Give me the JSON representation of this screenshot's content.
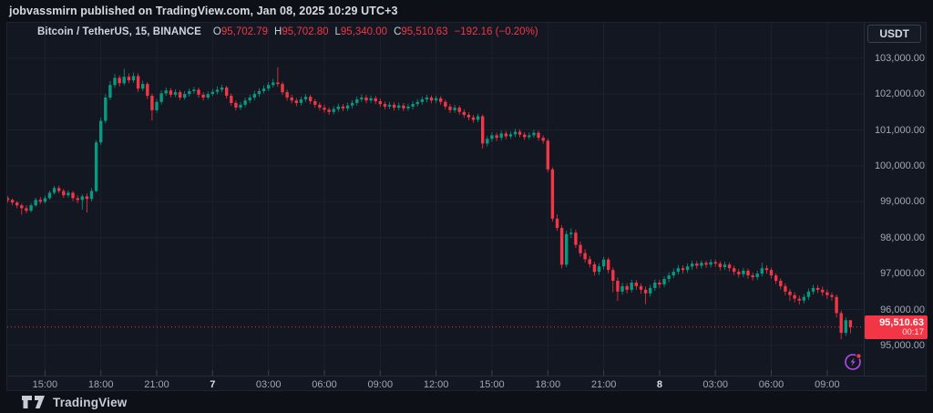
{
  "attribution": {
    "text": "jobvassmirn published on TradingView.com, Jan 08, 2025 10:29 UTC+3"
  },
  "toolbar": {
    "currency_button_label": "USDT"
  },
  "legend": {
    "symbol": "Bitcoin / TetherUS, 15, BINANCE",
    "o_label": "O",
    "o_value": "95,702.79",
    "h_label": "H",
    "h_value": "95,702.80",
    "l_label": "L",
    "l_value": "95,340.00",
    "c_label": "C",
    "c_value": "95,510.63",
    "change": "−192.16 (−0.20%)"
  },
  "price_badge": {
    "price": "95,510.63",
    "countdown": "00:17"
  },
  "footer": {
    "brand": "TradingView"
  },
  "colors": {
    "up": "#089981",
    "down": "#f23645",
    "chart_bg": "#131722",
    "page_bg": "#0e1018",
    "grid": "#1d212d",
    "tick_stub": "#3a3f4c",
    "axis_text": "#a3a7b1",
    "badge_bg": "#f23645",
    "flash_purple": "#b44cf0"
  },
  "chart_data": {
    "type": "candlestick",
    "title": "Bitcoin / TetherUS",
    "interval": "15",
    "exchange": "BINANCE",
    "last_price": 95510.63,
    "ylim": [
      94160,
      103982
    ],
    "grid": true,
    "y_axis": {
      "ticks": [
        {
          "label": "103,000.00",
          "value": 103000
        },
        {
          "label": "102,000.00",
          "value": 102000
        },
        {
          "label": "101,000.00",
          "value": 101000
        },
        {
          "label": "100,000.00",
          "value": 100000
        },
        {
          "label": "99,000.00",
          "value": 99000
        },
        {
          "label": "98,000.00",
          "value": 98000
        },
        {
          "label": "97,000.00",
          "value": 97000
        },
        {
          "label": "96,000.00",
          "value": 96000
        },
        {
          "label": "95,000.00",
          "value": 95000
        }
      ]
    },
    "x_axis": {
      "ticks": [
        {
          "label": "15:00",
          "index": 8,
          "bold": false
        },
        {
          "label": "18:00",
          "index": 20,
          "bold": false
        },
        {
          "label": "21:00",
          "index": 32,
          "bold": false
        },
        {
          "label": "7",
          "index": 44,
          "bold": true
        },
        {
          "label": "03:00",
          "index": 56,
          "bold": false
        },
        {
          "label": "06:00",
          "index": 68,
          "bold": false
        },
        {
          "label": "09:00",
          "index": 80,
          "bold": false
        },
        {
          "label": "12:00",
          "index": 92,
          "bold": false
        },
        {
          "label": "15:00",
          "index": 104,
          "bold": false
        },
        {
          "label": "18:00",
          "index": 116,
          "bold": false
        },
        {
          "label": "21:00",
          "index": 128,
          "bold": false
        },
        {
          "label": "8",
          "index": 140,
          "bold": true
        },
        {
          "label": "03:00",
          "index": 152,
          "bold": false
        },
        {
          "label": "06:00",
          "index": 164,
          "bold": false
        },
        {
          "label": "09:00",
          "index": 176,
          "bold": false
        }
      ]
    },
    "candles": [
      [
        99100,
        99160,
        98980,
        99050
      ],
      [
        99050,
        99090,
        98900,
        98980
      ],
      [
        98980,
        99020,
        98820,
        98900
      ],
      [
        98900,
        98950,
        98640,
        98820
      ],
      [
        98820,
        98900,
        98680,
        98750
      ],
      [
        98750,
        98960,
        98700,
        98900
      ],
      [
        98900,
        99110,
        98860,
        99050
      ],
      [
        99050,
        99130,
        98940,
        99000
      ],
      [
        99000,
        99170,
        98950,
        99100
      ],
      [
        99100,
        99310,
        99060,
        99250
      ],
      [
        99250,
        99440,
        99200,
        99380
      ],
      [
        99380,
        99450,
        99240,
        99300
      ],
      [
        99300,
        99360,
        99110,
        99180
      ],
      [
        99180,
        99320,
        99120,
        99250
      ],
      [
        99250,
        99300,
        99020,
        99100
      ],
      [
        99100,
        99180,
        98960,
        99050
      ],
      [
        99050,
        99210,
        98780,
        99150
      ],
      [
        99150,
        99230,
        98700,
        99080
      ],
      [
        99080,
        99380,
        99010,
        99300
      ],
      [
        99300,
        100720,
        99260,
        100650
      ],
      [
        100650,
        101340,
        100580,
        101250
      ],
      [
        101250,
        101990,
        101180,
        101900
      ],
      [
        101900,
        102360,
        101830,
        102250
      ],
      [
        102250,
        102560,
        102170,
        102450
      ],
      [
        102450,
        102520,
        102210,
        102300
      ],
      [
        102300,
        102700,
        102240,
        102480
      ],
      [
        102480,
        102570,
        102300,
        102380
      ],
      [
        102380,
        102600,
        102310,
        102500
      ],
      [
        102500,
        102580,
        102060,
        102150
      ],
      [
        102150,
        102370,
        102080,
        102280
      ],
      [
        102280,
        102330,
        101860,
        101950
      ],
      [
        101950,
        102010,
        101260,
        101550
      ],
      [
        101550,
        101860,
        101480,
        101780
      ],
      [
        101780,
        102100,
        101710,
        102020
      ],
      [
        102020,
        102180,
        101950,
        102100
      ],
      [
        102100,
        102170,
        101900,
        101980
      ],
      [
        101980,
        102130,
        101910,
        102050
      ],
      [
        102050,
        102110,
        101830,
        101900
      ],
      [
        101900,
        102080,
        101840,
        102000
      ],
      [
        102000,
        102150,
        101930,
        102080
      ],
      [
        102080,
        102200,
        102010,
        102120
      ],
      [
        102120,
        102180,
        101900,
        101980
      ],
      [
        101980,
        102050,
        101820,
        101900
      ],
      [
        101900,
        102070,
        101840,
        102000
      ],
      [
        102000,
        102140,
        101950,
        102060
      ],
      [
        102060,
        102210,
        101990,
        102120
      ],
      [
        102120,
        102260,
        102050,
        102180
      ],
      [
        102180,
        102230,
        101870,
        101950
      ],
      [
        101950,
        102010,
        101670,
        101750
      ],
      [
        101750,
        101820,
        101540,
        101620
      ],
      [
        101620,
        101780,
        101550,
        101700
      ],
      [
        101700,
        101900,
        101630,
        101820
      ],
      [
        101820,
        101980,
        101750,
        101900
      ],
      [
        101900,
        102090,
        101830,
        102000
      ],
      [
        102000,
        102160,
        101920,
        102080
      ],
      [
        102080,
        102240,
        102010,
        102150
      ],
      [
        102150,
        102330,
        102080,
        102250
      ],
      [
        102250,
        102420,
        102180,
        102320
      ],
      [
        102320,
        102740,
        102200,
        102280
      ],
      [
        102280,
        102340,
        101970,
        102050
      ],
      [
        102050,
        102120,
        101820,
        101900
      ],
      [
        101900,
        101980,
        101740,
        101820
      ],
      [
        101820,
        101890,
        101660,
        101750
      ],
      [
        101750,
        101930,
        101680,
        101850
      ],
      [
        101850,
        102000,
        101780,
        101920
      ],
      [
        101920,
        101980,
        101720,
        101800
      ],
      [
        101800,
        101860,
        101620,
        101700
      ],
      [
        101700,
        101770,
        101540,
        101620
      ],
      [
        101620,
        101700,
        101480,
        101560
      ],
      [
        101560,
        101630,
        101420,
        101500
      ],
      [
        101500,
        101660,
        101430,
        101580
      ],
      [
        101580,
        101730,
        101500,
        101650
      ],
      [
        101650,
        101720,
        101520,
        101600
      ],
      [
        101600,
        101760,
        101530,
        101680
      ],
      [
        101680,
        101830,
        101600,
        101750
      ],
      [
        101750,
        101930,
        101680,
        101850
      ],
      [
        101850,
        101990,
        101780,
        101900
      ],
      [
        101900,
        101970,
        101740,
        101820
      ],
      [
        101820,
        101960,
        101750,
        101880
      ],
      [
        101880,
        101950,
        101720,
        101800
      ],
      [
        101800,
        101870,
        101640,
        101720
      ],
      [
        101720,
        101790,
        101570,
        101650
      ],
      [
        101650,
        101780,
        101580,
        101700
      ],
      [
        101700,
        101770,
        101540,
        101620
      ],
      [
        101620,
        101760,
        101550,
        101680
      ],
      [
        101680,
        101750,
        101520,
        101600
      ],
      [
        101600,
        101730,
        101530,
        101650
      ],
      [
        101650,
        101800,
        101570,
        101720
      ],
      [
        101720,
        101860,
        101650,
        101780
      ],
      [
        101780,
        101930,
        101700,
        101850
      ],
      [
        101850,
        101980,
        101770,
        101900
      ],
      [
        101900,
        101960,
        101740,
        101820
      ],
      [
        101820,
        101950,
        101750,
        101880
      ],
      [
        101880,
        101940,
        101700,
        101780
      ],
      [
        101780,
        101840,
        101570,
        101650
      ],
      [
        101650,
        101720,
        101470,
        101550
      ],
      [
        101550,
        101700,
        101480,
        101620
      ],
      [
        101620,
        101680,
        101420,
        101500
      ],
      [
        101500,
        101570,
        101340,
        101420
      ],
      [
        101420,
        101490,
        101270,
        101350
      ],
      [
        101350,
        101420,
        101200,
        101280
      ],
      [
        101280,
        101450,
        101210,
        101380
      ],
      [
        101380,
        101430,
        100480,
        100620
      ],
      [
        100620,
        100830,
        100540,
        100750
      ],
      [
        100750,
        100930,
        100670,
        100850
      ],
      [
        100850,
        100920,
        100690,
        100780
      ],
      [
        100780,
        100980,
        100700,
        100900
      ],
      [
        100900,
        100970,
        100740,
        100820
      ],
      [
        100820,
        100960,
        100750,
        100880
      ],
      [
        100880,
        101030,
        100800,
        100950
      ],
      [
        100950,
        101020,
        100790,
        100870
      ],
      [
        100870,
        100940,
        100720,
        100800
      ],
      [
        100800,
        100930,
        100730,
        100850
      ],
      [
        100850,
        101000,
        100780,
        100920
      ],
      [
        100920,
        100980,
        100700,
        100780
      ],
      [
        100780,
        100850,
        100620,
        100700
      ],
      [
        100700,
        100760,
        99820,
        99900
      ],
      [
        99900,
        99960,
        98450,
        98530
      ],
      [
        98530,
        98650,
        98190,
        98270
      ],
      [
        98270,
        98350,
        97150,
        97250
      ],
      [
        97250,
        98190,
        97180,
        98100
      ],
      [
        98100,
        98260,
        97990,
        98140
      ],
      [
        98140,
        98220,
        97710,
        97800
      ],
      [
        97800,
        97890,
        97480,
        97570
      ],
      [
        97570,
        97680,
        97310,
        97400
      ],
      [
        97400,
        97490,
        97170,
        97260
      ],
      [
        97260,
        97330,
        96950,
        97050
      ],
      [
        97050,
        97290,
        96960,
        97200
      ],
      [
        97200,
        97470,
        97110,
        97390
      ],
      [
        97390,
        97450,
        97010,
        97100
      ],
      [
        97100,
        97170,
        96480,
        96800
      ],
      [
        96800,
        96890,
        96240,
        96500
      ],
      [
        96500,
        96740,
        96410,
        96650
      ],
      [
        96650,
        96730,
        96450,
        96550
      ],
      [
        96550,
        96830,
        96470,
        96750
      ],
      [
        96750,
        96820,
        96550,
        96650
      ],
      [
        96650,
        96730,
        96440,
        96550
      ],
      [
        96550,
        96640,
        96150,
        96450
      ],
      [
        96450,
        96690,
        96360,
        96600
      ],
      [
        96600,
        96840,
        96520,
        96750
      ],
      [
        96750,
        96830,
        96600,
        96700
      ],
      [
        96700,
        96930,
        96620,
        96850
      ],
      [
        96850,
        97040,
        96760,
        96950
      ],
      [
        96950,
        97140,
        96870,
        97050
      ],
      [
        97050,
        97240,
        96970,
        97150
      ],
      [
        97150,
        97230,
        97010,
        97100
      ],
      [
        97100,
        97280,
        97020,
        97200
      ],
      [
        97200,
        97360,
        97110,
        97280
      ],
      [
        97280,
        97350,
        97130,
        97220
      ],
      [
        97220,
        97370,
        97140,
        97300
      ],
      [
        97300,
        97360,
        97160,
        97250
      ],
      [
        97250,
        97400,
        97170,
        97320
      ],
      [
        97320,
        97390,
        97190,
        97280
      ],
      [
        97280,
        97340,
        97090,
        97180
      ],
      [
        97180,
        97330,
        97100,
        97250
      ],
      [
        97250,
        97310,
        97060,
        97150
      ],
      [
        97150,
        97220,
        96960,
        97050
      ],
      [
        97050,
        97130,
        96890,
        96980
      ],
      [
        96980,
        97160,
        96900,
        97080
      ],
      [
        97080,
        97140,
        96860,
        96950
      ],
      [
        96950,
        97030,
        96810,
        96900
      ],
      [
        96900,
        97080,
        96820,
        97000
      ],
      [
        97000,
        97300,
        96920,
        97150
      ],
      [
        97150,
        97230,
        97000,
        97100
      ],
      [
        97100,
        97160,
        96860,
        96950
      ],
      [
        96950,
        97010,
        96710,
        96800
      ],
      [
        96800,
        96870,
        96560,
        96650
      ],
      [
        96650,
        96720,
        96400,
        96500
      ],
      [
        96500,
        96570,
        96240,
        96400
      ],
      [
        96400,
        96480,
        96200,
        96300
      ],
      [
        96300,
        96390,
        96140,
        96250
      ],
      [
        96250,
        96430,
        96170,
        96350
      ],
      [
        96350,
        96580,
        96270,
        96500
      ],
      [
        96500,
        96690,
        96420,
        96600
      ],
      [
        96600,
        96680,
        96460,
        96550
      ],
      [
        96550,
        96640,
        96380,
        96480
      ],
      [
        96480,
        96560,
        96300,
        96400
      ],
      [
        96400,
        96480,
        96250,
        96350
      ],
      [
        96350,
        96420,
        95780,
        95900
      ],
      [
        95900,
        95970,
        95170,
        95350
      ],
      [
        95350,
        95780,
        95270,
        95703
      ],
      [
        95702.79,
        95702.8,
        95340,
        95510.63
      ]
    ]
  }
}
